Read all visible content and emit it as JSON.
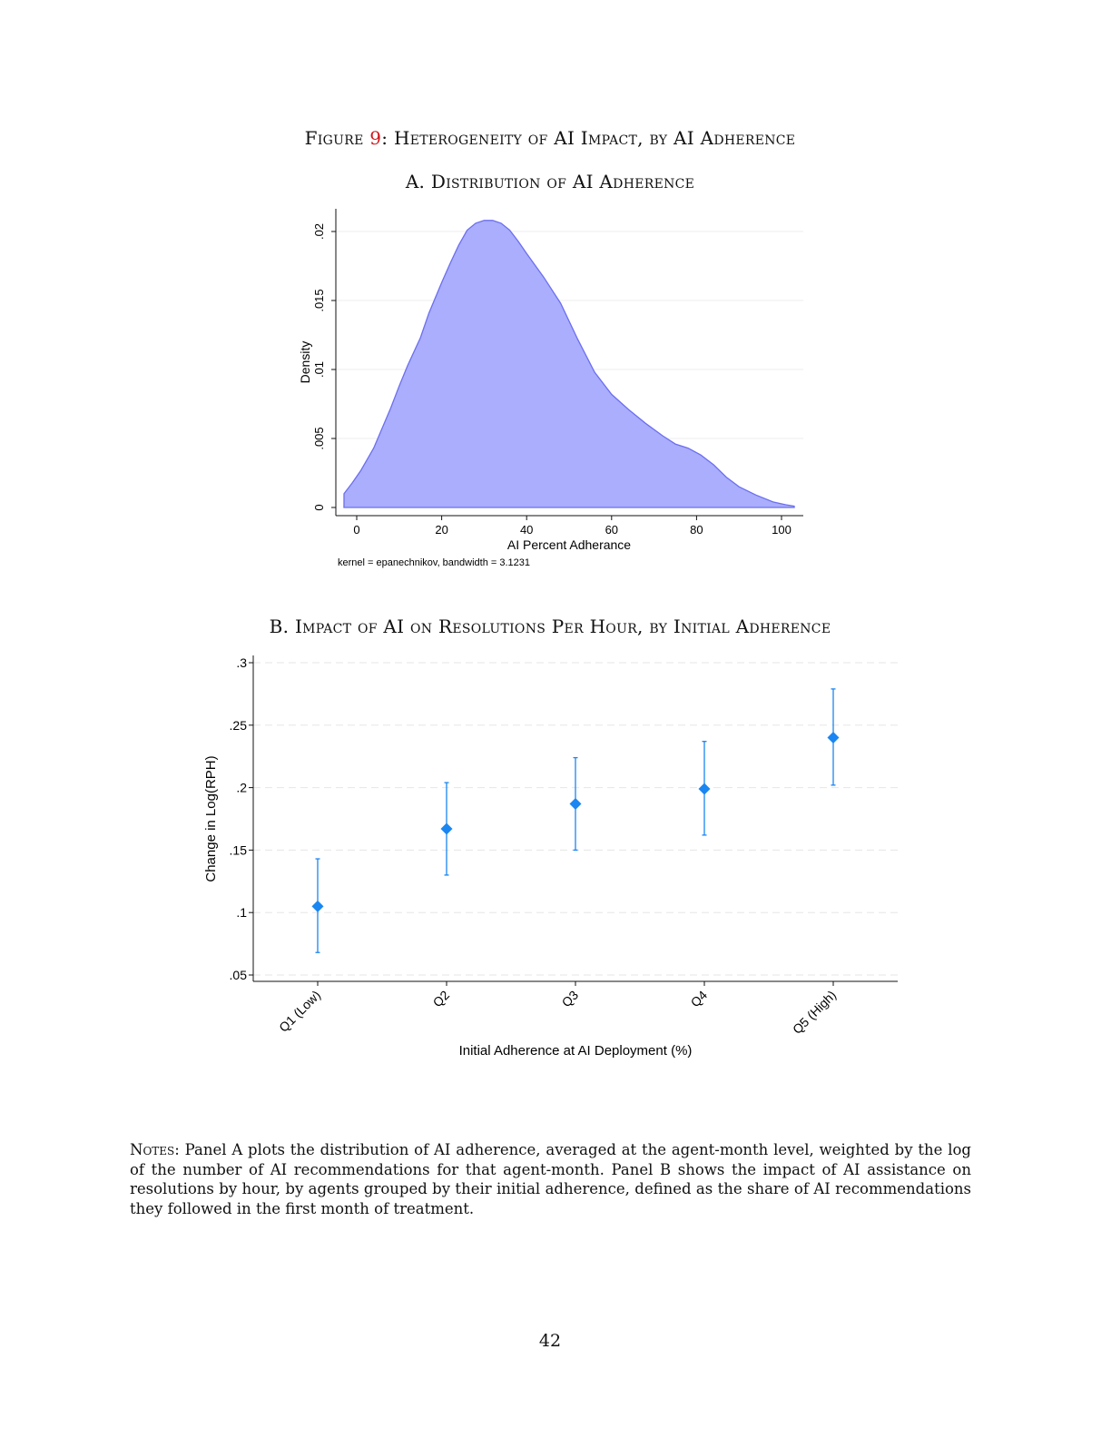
{
  "figure": {
    "prefix": "Figure ",
    "number": "9",
    "title": ": Heterogeneity of AI Impact, by AI Adherence"
  },
  "panel_a": {
    "title": "A. Distribution of AI Adherence"
  },
  "panel_b": {
    "title": "B. Impact of AI on Resolutions Per Hour, by Initial Adherence"
  },
  "notes": {
    "lead": "Notes:",
    "text": " Panel A plots the distribution of AI adherence, averaged at the agent-month level, weighted by the log of the number of AI recommendations for that agent-month. Panel B shows the impact of AI assistance on resolutions by hour, by agents grouped by their initial adherence, defined as the share of AI recommendations they followed in the first month of treatment."
  },
  "page_number": "42",
  "colors": {
    "density_fill": "#aaaefc",
    "density_line": "#6b6ef0",
    "point": "#1a86f2",
    "caption_number": "#d0151b"
  },
  "chart_data": [
    {
      "type": "area",
      "xlabel": "AI Percent Adherance",
      "ylabel": "Density",
      "note": "kernel = epanechnikov, bandwidth = 3.1231",
      "xlim": [
        -3,
        103
      ],
      "ylim": [
        0,
        0.022
      ],
      "xticks": [
        0,
        20,
        40,
        60,
        80,
        100
      ],
      "yticks": [
        0,
        0.005,
        0.01,
        0.015,
        0.02
      ],
      "ytick_labels": [
        "0",
        ".005",
        ".01",
        ".015",
        ".02"
      ],
      "grid": true,
      "x": [
        -3,
        -1,
        1,
        4,
        8,
        10,
        12,
        15,
        17,
        20,
        22,
        24,
        26,
        28,
        30,
        32,
        34,
        36,
        38,
        40,
        44,
        48,
        52,
        56,
        60,
        64,
        68,
        72,
        75,
        78,
        81,
        84,
        87,
        90,
        94,
        98,
        101,
        103
      ],
      "y": [
        0.001,
        0.0018,
        0.0027,
        0.0043,
        0.0072,
        0.0088,
        0.0103,
        0.0123,
        0.0141,
        0.0163,
        0.0177,
        0.019,
        0.0201,
        0.0206,
        0.0208,
        0.0208,
        0.0206,
        0.0201,
        0.0193,
        0.0184,
        0.0167,
        0.0148,
        0.0122,
        0.0098,
        0.0082,
        0.0071,
        0.0061,
        0.0052,
        0.0046,
        0.0043,
        0.0038,
        0.0031,
        0.0022,
        0.0015,
        0.0009,
        0.0004,
        0.0002,
        0.0001
      ]
    },
    {
      "type": "scatter",
      "xlabel": "Initial Adherence at AI Deployment (%)",
      "ylabel": "Change in Log(RPH)",
      "categories": [
        "Q1 (Low)",
        "Q2",
        "Q3",
        "Q4",
        "Q5 (High)"
      ],
      "values": [
        0.105,
        0.167,
        0.187,
        0.199,
        0.24
      ],
      "ci_low": [
        0.068,
        0.13,
        0.15,
        0.162,
        0.202
      ],
      "ci_high": [
        0.143,
        0.204,
        0.224,
        0.237,
        0.279
      ],
      "ylim": [
        0.045,
        0.305
      ],
      "yticks": [
        0.05,
        0.1,
        0.15,
        0.2,
        0.25,
        0.3
      ],
      "ytick_labels": [
        ".05",
        ".1",
        ".15",
        ".2",
        ".25",
        ".3"
      ],
      "grid": true
    }
  ]
}
